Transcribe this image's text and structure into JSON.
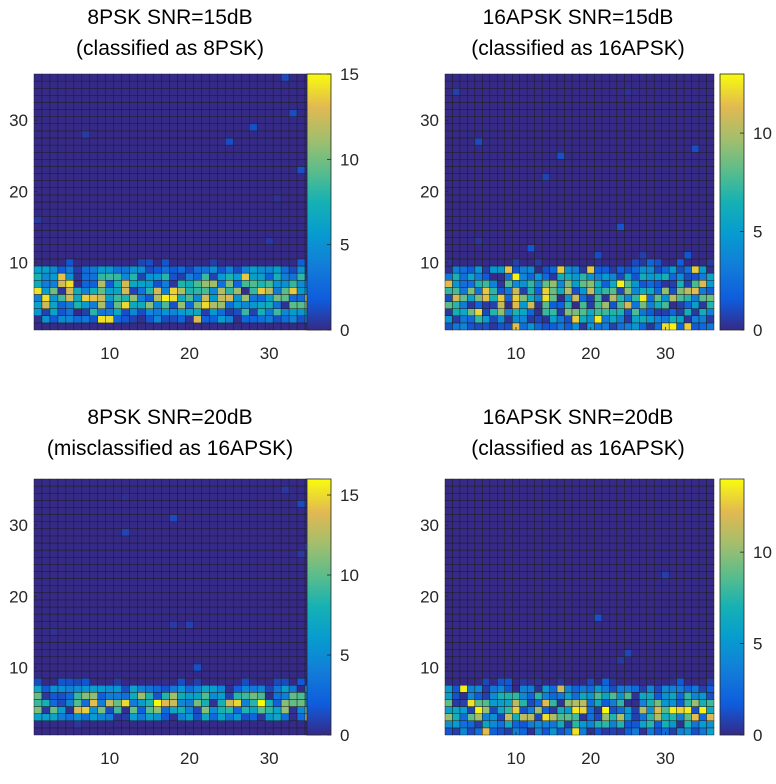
{
  "chart_data": [
    {
      "type": "heatmap",
      "title_line1": "8PSK SNR=15dB",
      "title_line2": "(classified as 8PSK)",
      "grid": [
        36,
        36
      ],
      "xlim": [
        0.5,
        36.5
      ],
      "ylim": [
        0.5,
        36.5
      ],
      "xticks": [
        "10",
        "20",
        "30"
      ],
      "yticks": [
        "10",
        "20",
        "30"
      ],
      "colorbar": {
        "range": [
          0,
          15
        ],
        "ticks": [
          "0",
          "5",
          "10",
          "15"
        ]
      },
      "active_rows": [
        2,
        9
      ],
      "peak": 15,
      "seed": 11
    },
    {
      "type": "heatmap",
      "title_line1": "16APSK SNR=15dB",
      "title_line2": "(classified as 16APSK)",
      "grid": [
        36,
        36
      ],
      "xlim": [
        0.5,
        36.5
      ],
      "ylim": [
        0.5,
        36.5
      ],
      "xticks": [
        "10",
        "20",
        "30"
      ],
      "yticks": [
        "10",
        "20",
        "30"
      ],
      "colorbar": {
        "range": [
          0,
          13
        ],
        "ticks": [
          "0",
          "5",
          "10"
        ]
      },
      "active_rows": [
        1,
        9
      ],
      "peak": 13,
      "seed": 23
    },
    {
      "type": "heatmap",
      "title_line1": "8PSK SNR=20dB",
      "title_line2": "(misclassified as 16APSK)",
      "grid": [
        36,
        36
      ],
      "xlim": [
        0.5,
        36.5
      ],
      "ylim": [
        0.5,
        36.5
      ],
      "xticks": [
        "10",
        "20",
        "30"
      ],
      "yticks": [
        "10",
        "20",
        "30"
      ],
      "colorbar": {
        "range": [
          0,
          16
        ],
        "ticks": [
          "0",
          "5",
          "10",
          "15"
        ]
      },
      "active_rows": [
        3,
        7
      ],
      "peak": 16,
      "seed": 37
    },
    {
      "type": "heatmap",
      "title_line1": "16APSK SNR=20dB",
      "title_line2": "(classified as 16APSK)",
      "grid": [
        36,
        36
      ],
      "xlim": [
        0.5,
        36.5
      ],
      "ylim": [
        0.5,
        36.5
      ],
      "xticks": [
        "10",
        "20",
        "30"
      ],
      "yticks": [
        "10",
        "20",
        "30"
      ],
      "colorbar": {
        "range": [
          0,
          14
        ],
        "ticks": [
          "0",
          "5",
          "10"
        ]
      },
      "active_rows": [
        1,
        7
      ],
      "peak": 14,
      "seed": 53
    }
  ]
}
